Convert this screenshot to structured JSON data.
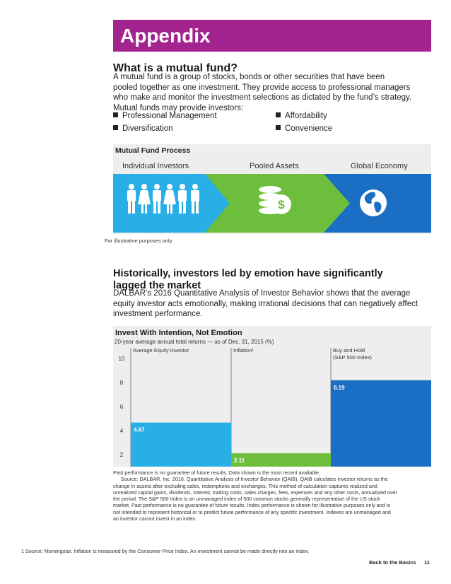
{
  "header": {
    "title": "Appendix"
  },
  "mutual_fund": {
    "heading": "What is a mutual fund?",
    "body_lines": [
      "A mutual fund is a group of stocks, bonds or other securities that have been",
      "pooled together as one investment. They provide access to professional managers",
      "who make and monitor the investment selections as dictated by the fund’s strategy.",
      "Mutual funds may provide investors:"
    ],
    "bullets": [
      "Professional Management",
      "Affordability",
      "Diversification",
      "Convenience"
    ]
  },
  "process": {
    "title": "Mutual Fund Process",
    "steps": [
      "Individual Investors",
      "Pooled Assets",
      "Global Economy"
    ],
    "icons": [
      "people-icon",
      "coins-dollar-icon",
      "globe-icon"
    ],
    "colors": {
      "investors": "#29aee6",
      "pooled": "#6dbe3c",
      "economy": "#1a6fc4"
    },
    "note": "For illustrative purposes only"
  },
  "emotion": {
    "heading_lines": [
      "Historically, investors led by emotion have significantly",
      "lagged the market"
    ],
    "body_lines": [
      "DALBAR’s 2016 Quantitative Analysis of Investor Behavior shows that the average",
      "equity investor acts emotionally, making irrational decisions that can negatively affect",
      "investment performance."
    ]
  },
  "chart_data": {
    "type": "bar",
    "title": "Invest With Intention, Not Emotion",
    "subtitle": "20-year average annual total returns — as of Dec. 31, 2015 (%)",
    "categories": [
      "Average Equity Investor",
      "Inflation¹",
      "Buy and Hold (S&P 500 Index)"
    ],
    "category_lines": [
      [
        "Average Equity Investor"
      ],
      [
        "Inflation¹"
      ],
      [
        "Buy and Hold",
        "(S&P 500 Index)"
      ]
    ],
    "values": [
      4.67,
      2.11,
      8.19
    ],
    "value_labels": [
      "4.67",
      "2.11",
      "8.19"
    ],
    "colors": [
      "#29aee6",
      "#6dbe3c",
      "#1a6fc4"
    ],
    "yticks": [
      "2",
      "4",
      "6",
      "8",
      "10"
    ],
    "ylim": [
      1,
      11
    ]
  },
  "disclaimer_lines": [
    "Past performance is no guarantee of future results. Data shown is the most recent available.",
    "  Source: DALBAR, Inc. 2016. Quantitative Analysis of Investor Behavior (QAIB). QAIB calculates investor returns as the",
    "change in assets after excluding sales, redemptions and exchanges. This method of calculation captures realized and",
    "unrealized capital gains, dividends, interest, trading costs, sales charges, fees, expenses and any other costs, annualized over",
    "the period. The S&P 500 Index is an unmanaged index of 500 common stocks generally representative of the US stock",
    "market. Past performance is no guarantee of future results. Index performance is shown for illustrative purposes only and is",
    "not intended to represent historical or to predict future performance of any specific investment. Indexes are unmanaged and",
    "an investor cannot invest in an index."
  ],
  "footnote": "1  Source: Morningstar. Inflation is measured by the Consumer Price Index. An investment cannot be made directly into an index.",
  "footer": {
    "section": "Back to the Basics",
    "page": "11"
  }
}
